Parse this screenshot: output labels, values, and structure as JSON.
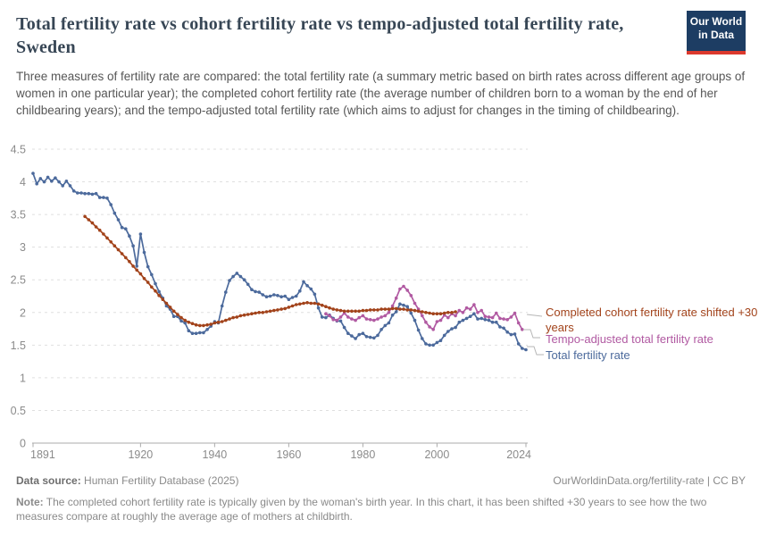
{
  "header": {
    "title": "Total fertility rate vs cohort fertility rate vs tempo-adjusted total fertility rate, Sweden",
    "subtitle": "Three measures of fertility rate are compared: the total fertility rate (a summary metric based on birth rates across different age groups of women in one particular year); the completed cohort fertility rate (the average number of children born to a woman by the end of her childbearing years); and the tempo-adjusted total fertility rate (which aims to adjust for changes in the timing of childbearing).",
    "logo_line1": "Our World",
    "logo_line2": "in Data",
    "logo_bg": "#1d3d63",
    "logo_accent": "#dc392d"
  },
  "chart_data": {
    "type": "line",
    "title": "Total fertility rate vs cohort fertility rate vs tempo-adjusted total fertility rate, Sweden",
    "xlabel": "",
    "ylabel": "",
    "grid": true,
    "legend_position": "right",
    "x_axis": {
      "range": [
        1891,
        2025
      ],
      "ticks": [
        1891,
        1920,
        1940,
        1960,
        1980,
        2000,
        2024
      ]
    },
    "y_axis": {
      "range": [
        0,
        4.5
      ],
      "ticks": [
        0,
        0.5,
        1,
        1.5,
        2,
        2.5,
        3,
        3.5,
        4,
        4.5
      ]
    },
    "series": [
      {
        "name": "Completed cohort fertility rate shifted +30 years",
        "color": "#a2431b",
        "start_year": 1905,
        "values": [
          3.47,
          3.42,
          3.37,
          3.31,
          3.26,
          3.2,
          3.14,
          3.08,
          3.02,
          2.96,
          2.9,
          2.84,
          2.78,
          2.71,
          2.65,
          2.59,
          2.52,
          2.46,
          2.39,
          2.33,
          2.26,
          2.2,
          2.14,
          2.08,
          2.02,
          1.97,
          1.92,
          1.88,
          1.85,
          1.83,
          1.81,
          1.8,
          1.8,
          1.81,
          1.82,
          1.84,
          1.85,
          1.86,
          1.88,
          1.9,
          1.92,
          1.93,
          1.95,
          1.96,
          1.97,
          1.98,
          1.99,
          2.0,
          2.0,
          2.01,
          2.02,
          2.03,
          2.04,
          2.05,
          2.06,
          2.08,
          2.1,
          2.12,
          2.13,
          2.14,
          2.15,
          2.14,
          2.14,
          2.13,
          2.11,
          2.09,
          2.07,
          2.05,
          2.04,
          2.03,
          2.02,
          2.02,
          2.02,
          2.02,
          2.02,
          2.03,
          2.03,
          2.04,
          2.04,
          2.04,
          2.05,
          2.05,
          2.05,
          2.06,
          2.06,
          2.05,
          2.05,
          2.04,
          2.04,
          2.03,
          2.02,
          2.01,
          2.0,
          1.99,
          1.98,
          1.98,
          1.98,
          1.99,
          2.0,
          2.0,
          2.01
        ]
      },
      {
        "name": "Tempo-adjusted total fertility rate",
        "color": "#b15aa2",
        "start_year": 1970,
        "values": [
          1.98,
          1.95,
          1.89,
          1.88,
          1.93,
          1.99,
          1.93,
          1.9,
          1.88,
          1.92,
          1.95,
          1.9,
          1.89,
          1.88,
          1.9,
          1.93,
          1.95,
          2.0,
          2.1,
          2.22,
          2.36,
          2.4,
          2.34,
          2.26,
          2.14,
          2.05,
          1.95,
          1.85,
          1.78,
          1.74,
          1.86,
          1.88,
          1.96,
          1.92,
          1.98,
          1.95,
          2.03,
          2.0,
          2.07,
          2.05,
          2.12,
          2.0,
          2.03,
          1.94,
          1.93,
          1.92,
          1.99,
          1.91,
          1.9,
          1.89,
          1.93,
          1.99,
          1.84,
          1.74
        ]
      },
      {
        "name": "Total fertility rate",
        "color": "#4c6a9c",
        "start_year": 1891,
        "values": [
          4.13,
          3.97,
          4.05,
          4.0,
          4.07,
          4.01,
          4.06,
          4.0,
          3.94,
          4.01,
          3.94,
          3.86,
          3.83,
          3.83,
          3.82,
          3.82,
          3.81,
          3.82,
          3.76,
          3.76,
          3.75,
          3.65,
          3.52,
          3.42,
          3.3,
          3.28,
          3.17,
          3.02,
          2.71,
          3.2,
          2.92,
          2.7,
          2.58,
          2.44,
          2.32,
          2.22,
          2.1,
          2.05,
          1.94,
          1.94,
          1.87,
          1.84,
          1.72,
          1.68,
          1.68,
          1.69,
          1.69,
          1.74,
          1.79,
          1.86,
          1.84,
          2.1,
          2.31,
          2.49,
          2.55,
          2.6,
          2.55,
          2.5,
          2.43,
          2.35,
          2.32,
          2.31,
          2.27,
          2.24,
          2.25,
          2.27,
          2.26,
          2.24,
          2.25,
          2.2,
          2.23,
          2.25,
          2.33,
          2.47,
          2.41,
          2.36,
          2.28,
          2.07,
          1.93,
          1.92,
          1.96,
          1.91,
          1.87,
          1.87,
          1.77,
          1.68,
          1.64,
          1.6,
          1.66,
          1.68,
          1.63,
          1.62,
          1.61,
          1.65,
          1.74,
          1.8,
          1.84,
          1.96,
          2.01,
          2.13,
          2.11,
          2.09,
          1.99,
          1.88,
          1.73,
          1.6,
          1.52,
          1.5,
          1.5,
          1.54,
          1.57,
          1.65,
          1.71,
          1.75,
          1.77,
          1.85,
          1.88,
          1.91,
          1.94,
          1.98,
          1.9,
          1.91,
          1.89,
          1.88,
          1.85,
          1.85,
          1.78,
          1.76,
          1.7,
          1.66,
          1.67,
          1.52,
          1.45,
          1.43
        ]
      }
    ]
  },
  "footer": {
    "data_source_label": "Data source:",
    "data_source_value": "Human Fertility Database (2025)",
    "link": "OurWorldinData.org/fertility-rate",
    "license_suffix": " | CC BY",
    "note_label": "Note:",
    "note_text": "The completed cohort fertility rate is typically given by the woman's birth year. In this chart, it has been shifted +30 years to see how the two measures compare at roughly the average age of mothers at childbirth."
  }
}
